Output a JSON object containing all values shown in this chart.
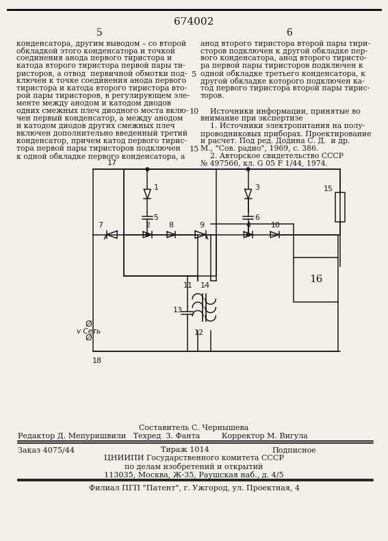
{
  "patent_number": "674002",
  "background_color": "#f2efe9",
  "text_color": "#1a1a1a",
  "col1_text": [
    "конденсатора, другим выводом – со второй",
    "обкладкой этого конденсатора и точкой",
    "соединения анода первого тиристора и",
    "катода второго тиристора первой пары ти-",
    "ристоров, а отвод  первичной обмотки под-",
    "ключен к точке соединения анода первого",
    "тиристора и катода второго тиристора вто-",
    "рой пары тиристоров, в регулирующем эле-",
    "менте между анодом и катодом диодов",
    "одних смежных плеч диодного моста вклю-",
    "чен первый конденсатор, а между анодом",
    "и катодом диодов других смежных плеч",
    "включен дополнительно введенный третий",
    "конденсатор, причем катод первого тирис-",
    "тора первой пары тиристоров подключен",
    "к одной обкладке первого конденсатора, а"
  ],
  "col2_text": [
    "анод второго тиристора второй пары тири-",
    "сторов подключен к другой обкладке пер-",
    "вого конденсатора, анод второго тиристо-",
    "ра первой пары тиристоров подключен к",
    "одной обкладке третьего конденсатора, к",
    "другой обкладке которого подключен ка-",
    "тод первого тиристора второй пары тирис-",
    "торов.",
    "",
    "    Источники информации, принятые во",
    "внимание при экспертизе",
    "    1. Источники электропитания на полу-",
    "проводниковых приборах. Проектирование",
    "и расчет. Под ред. Додина С. Д.  и др.",
    "М., \"Сов. радио\", 1969, с. 386.",
    "    2. Авторское свидетельство СССР",
    "№ 497566, кл. G 05 F 1/44, 1974."
  ],
  "line_numbers_rows": [
    4,
    9,
    14
  ],
  "line_numbers_vals": [
    5,
    10,
    15
  ],
  "footer_sestavitel": "Составитель С. Чернышева",
  "footer_editor": "Редактор Д. Мепуришвили   Техред  З. Фанта         Корректор М. Вигула",
  "footer_zakaz": "Заказ 4075/44",
  "footer_tirazh": "Тираж 1014",
  "footer_podpisnoe": "Подписное",
  "footer_cniipи": "ЦНИИПИ Государственного комитета СССР",
  "footer_dela": "по делам изобретений и открытий",
  "footer_addr": "113035, Москва, Ж-35, Раушская наб., д. 4/5",
  "footer_filial": "Филиал ПГП \"Патент\", г. Ужгород, ул. Проектная, 4"
}
